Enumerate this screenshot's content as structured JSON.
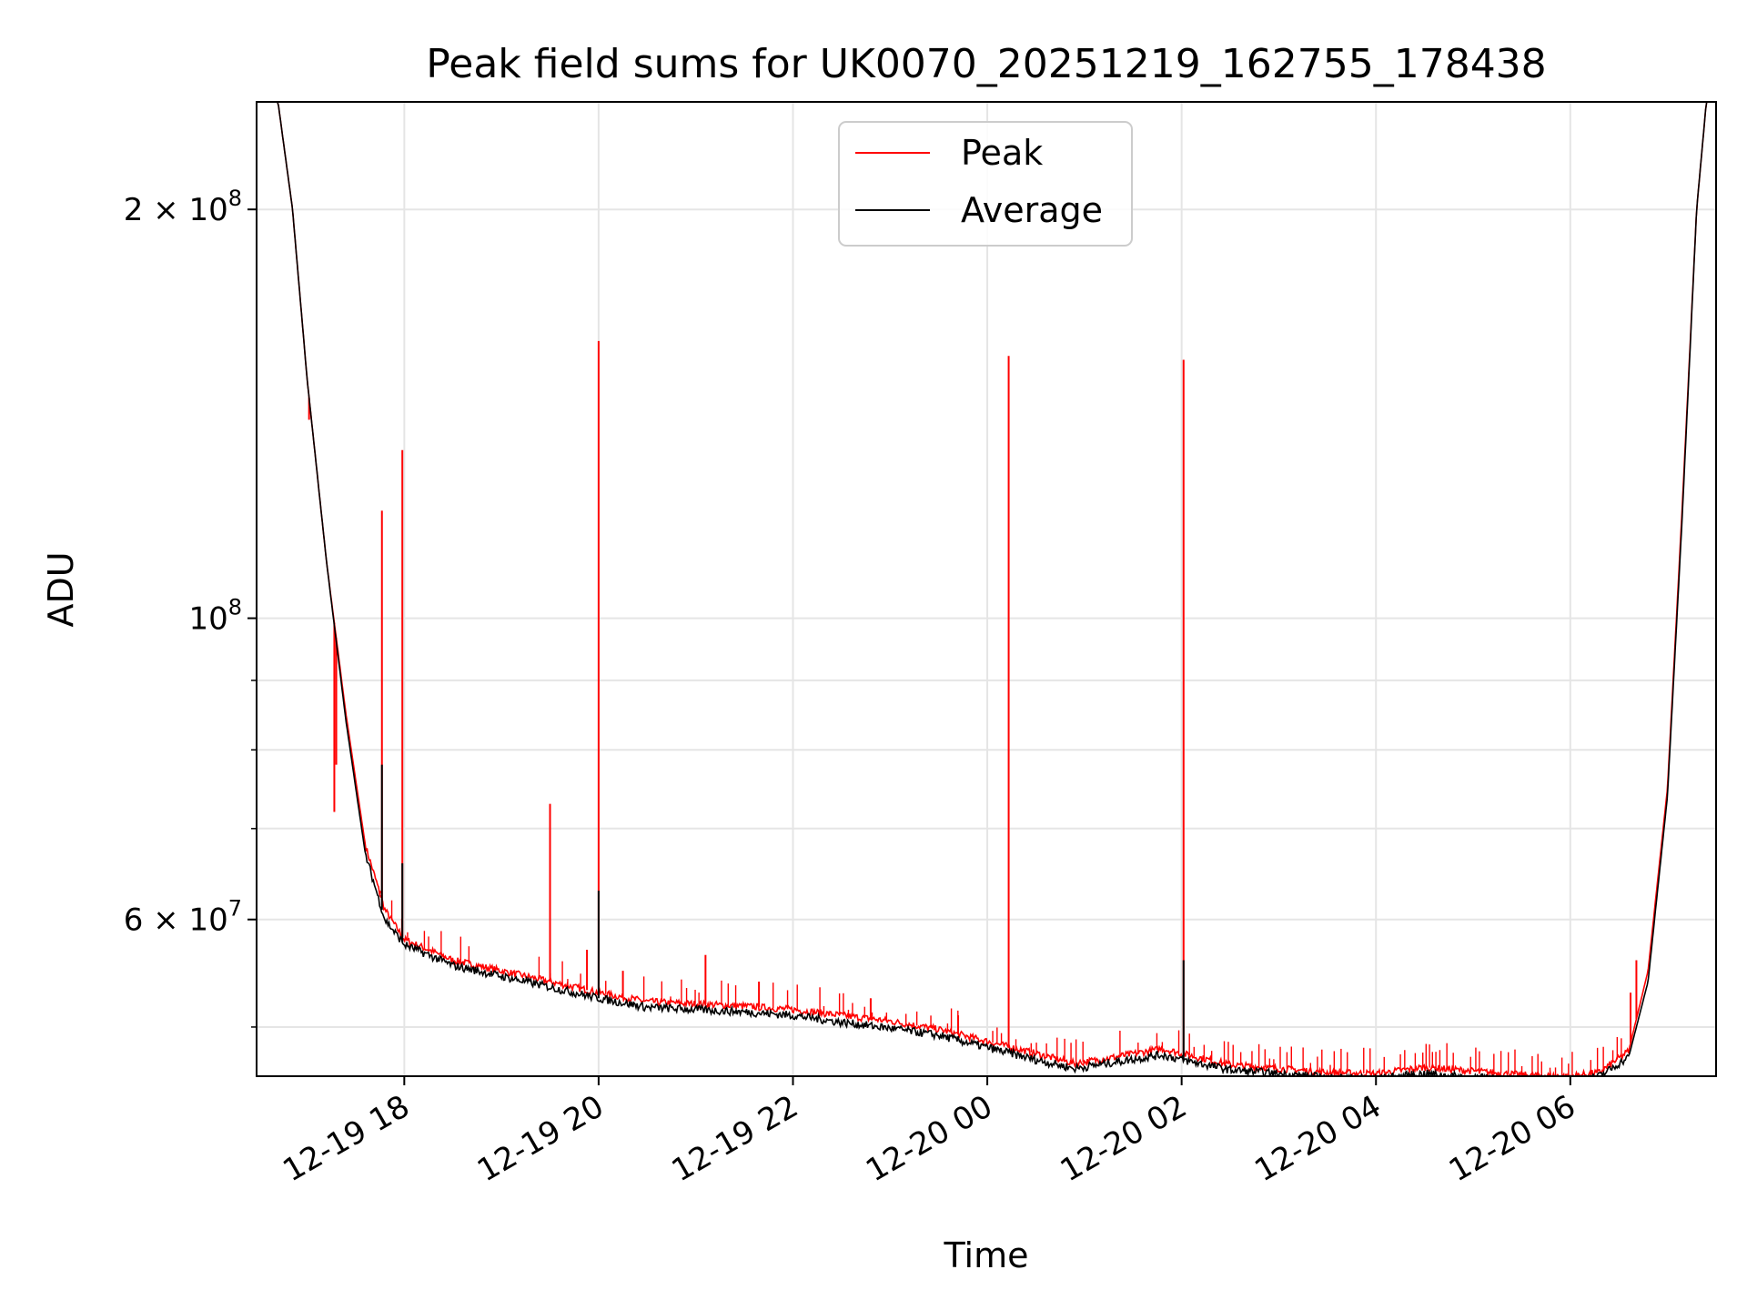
{
  "chart_data": {
    "type": "line",
    "title": "Peak field sums for UK0070_20251219_162755_178438",
    "xlabel": "Time",
    "ylabel": "ADU",
    "yscale": "log",
    "xlim_hours": [
      16.48,
      31.5
    ],
    "ylim": [
      46000000,
      240000000
    ],
    "grid": true,
    "legend_position": "upper center",
    "x_ticks": [
      {
        "hour": 18,
        "label": "12-19 18"
      },
      {
        "hour": 20,
        "label": "12-19 20"
      },
      {
        "hour": 22,
        "label": "12-19 22"
      },
      {
        "hour": 24,
        "label": "12-20 00"
      },
      {
        "hour": 26,
        "label": "12-20 02"
      },
      {
        "hour": 28,
        "label": "12-20 04"
      },
      {
        "hour": 30,
        "label": "12-20 06"
      }
    ],
    "y_major_ticks": [
      {
        "value": 200000000,
        "base": "2 × 10",
        "exp": "8"
      },
      {
        "value": 100000000,
        "base": "10",
        "exp": "8"
      },
      {
        "value": 60000000,
        "base": "6 × 10",
        "exp": "7"
      }
    ],
    "y_minor_gridlines": [
      50000000,
      70000000,
      80000000,
      90000000
    ],
    "series": [
      {
        "name": "Peak",
        "color": "#ff0000",
        "baseline_points": [
          [
            16.48,
            240000000
          ],
          [
            16.7,
            240000000
          ],
          [
            16.85,
            200000000
          ],
          [
            17.0,
            150000000
          ],
          [
            17.2,
            110000000
          ],
          [
            17.4,
            85000000
          ],
          [
            17.6,
            68000000
          ],
          [
            17.8,
            61000000
          ],
          [
            18.0,
            58000000
          ],
          [
            18.5,
            56000000
          ],
          [
            19.0,
            55000000
          ],
          [
            19.5,
            54000000
          ],
          [
            20.0,
            53000000
          ],
          [
            20.5,
            52200000
          ],
          [
            21.0,
            52000000
          ],
          [
            21.5,
            51800000
          ],
          [
            22.0,
            51500000
          ],
          [
            22.5,
            51000000
          ],
          [
            23.0,
            50500000
          ],
          [
            23.5,
            49800000
          ],
          [
            24.0,
            48800000
          ],
          [
            24.5,
            47800000
          ],
          [
            24.9,
            47000000
          ],
          [
            25.3,
            47500000
          ],
          [
            25.8,
            48200000
          ],
          [
            26.0,
            47800000
          ],
          [
            26.5,
            46900000
          ],
          [
            27.0,
            46600000
          ],
          [
            27.5,
            46300000
          ],
          [
            28.0,
            46200000
          ],
          [
            28.5,
            46700000
          ],
          [
            29.0,
            46400000
          ],
          [
            29.5,
            46100000
          ],
          [
            30.0,
            46000000
          ],
          [
            30.3,
            46300000
          ],
          [
            30.6,
            48000000
          ],
          [
            30.8,
            55000000
          ],
          [
            31.0,
            75000000
          ],
          [
            31.15,
            120000000
          ],
          [
            31.3,
            200000000
          ],
          [
            31.4,
            240000000
          ],
          [
            31.5,
            240000000
          ]
        ],
        "spikes": [
          {
            "hour": 17.02,
            "value": 140000000
          },
          {
            "hour": 17.3,
            "value": 78000000
          },
          {
            "hour": 17.28,
            "value": 72000000
          },
          {
            "hour": 17.77,
            "value": 120000000
          },
          {
            "hour": 17.75,
            "value": 63000000
          },
          {
            "hour": 17.98,
            "value": 133000000
          },
          {
            "hour": 19.5,
            "value": 73000000
          },
          {
            "hour": 19.88,
            "value": 57000000
          },
          {
            "hour": 20.0,
            "value": 160000000
          },
          {
            "hour": 20.25,
            "value": 55000000
          },
          {
            "hour": 21.1,
            "value": 56500000
          },
          {
            "hour": 21.65,
            "value": 54000000
          },
          {
            "hour": 22.8,
            "value": 52500000
          },
          {
            "hour": 23.7,
            "value": 51000000
          },
          {
            "hour": 24.22,
            "value": 156000000
          },
          {
            "hour": 26.02,
            "value": 155000000
          },
          {
            "hour": 30.62,
            "value": 53000000
          },
          {
            "hour": 30.68,
            "value": 56000000
          }
        ]
      },
      {
        "name": "Average",
        "color": "#000000",
        "baseline_points": [
          [
            16.48,
            240000000
          ],
          [
            16.7,
            240000000
          ],
          [
            16.85,
            200000000
          ],
          [
            17.0,
            150000000
          ],
          [
            17.2,
            110000000
          ],
          [
            17.4,
            84000000
          ],
          [
            17.6,
            67000000
          ],
          [
            17.8,
            60000000
          ],
          [
            18.0,
            57500000
          ],
          [
            18.5,
            55500000
          ],
          [
            19.0,
            54500000
          ],
          [
            19.5,
            53500000
          ],
          [
            20.0,
            52500000
          ],
          [
            20.5,
            51700000
          ],
          [
            21.0,
            51500000
          ],
          [
            21.5,
            51300000
          ],
          [
            22.0,
            51000000
          ],
          [
            22.5,
            50400000
          ],
          [
            23.0,
            49900000
          ],
          [
            23.5,
            49300000
          ],
          [
            24.0,
            48300000
          ],
          [
            24.5,
            47300000
          ],
          [
            24.9,
            46600000
          ],
          [
            25.3,
            47100000
          ],
          [
            25.8,
            47700000
          ],
          [
            26.0,
            47300000
          ],
          [
            26.5,
            46500000
          ],
          [
            27.0,
            46200000
          ],
          [
            27.5,
            45900000
          ],
          [
            28.0,
            45800000
          ],
          [
            28.5,
            46200000
          ],
          [
            29.0,
            45900000
          ],
          [
            29.5,
            45700000
          ],
          [
            30.0,
            45600000
          ],
          [
            30.3,
            46000000
          ],
          [
            30.6,
            47500000
          ],
          [
            30.8,
            54000000
          ],
          [
            31.0,
            74000000
          ],
          [
            31.15,
            118000000
          ],
          [
            31.3,
            200000000
          ],
          [
            31.4,
            240000000
          ],
          [
            31.5,
            240000000
          ]
        ],
        "spikes": [
          {
            "hour": 17.77,
            "value": 78000000
          },
          {
            "hour": 17.98,
            "value": 66000000
          },
          {
            "hour": 20.0,
            "value": 63000000
          },
          {
            "hour": 26.02,
            "value": 56000000
          }
        ]
      }
    ]
  }
}
